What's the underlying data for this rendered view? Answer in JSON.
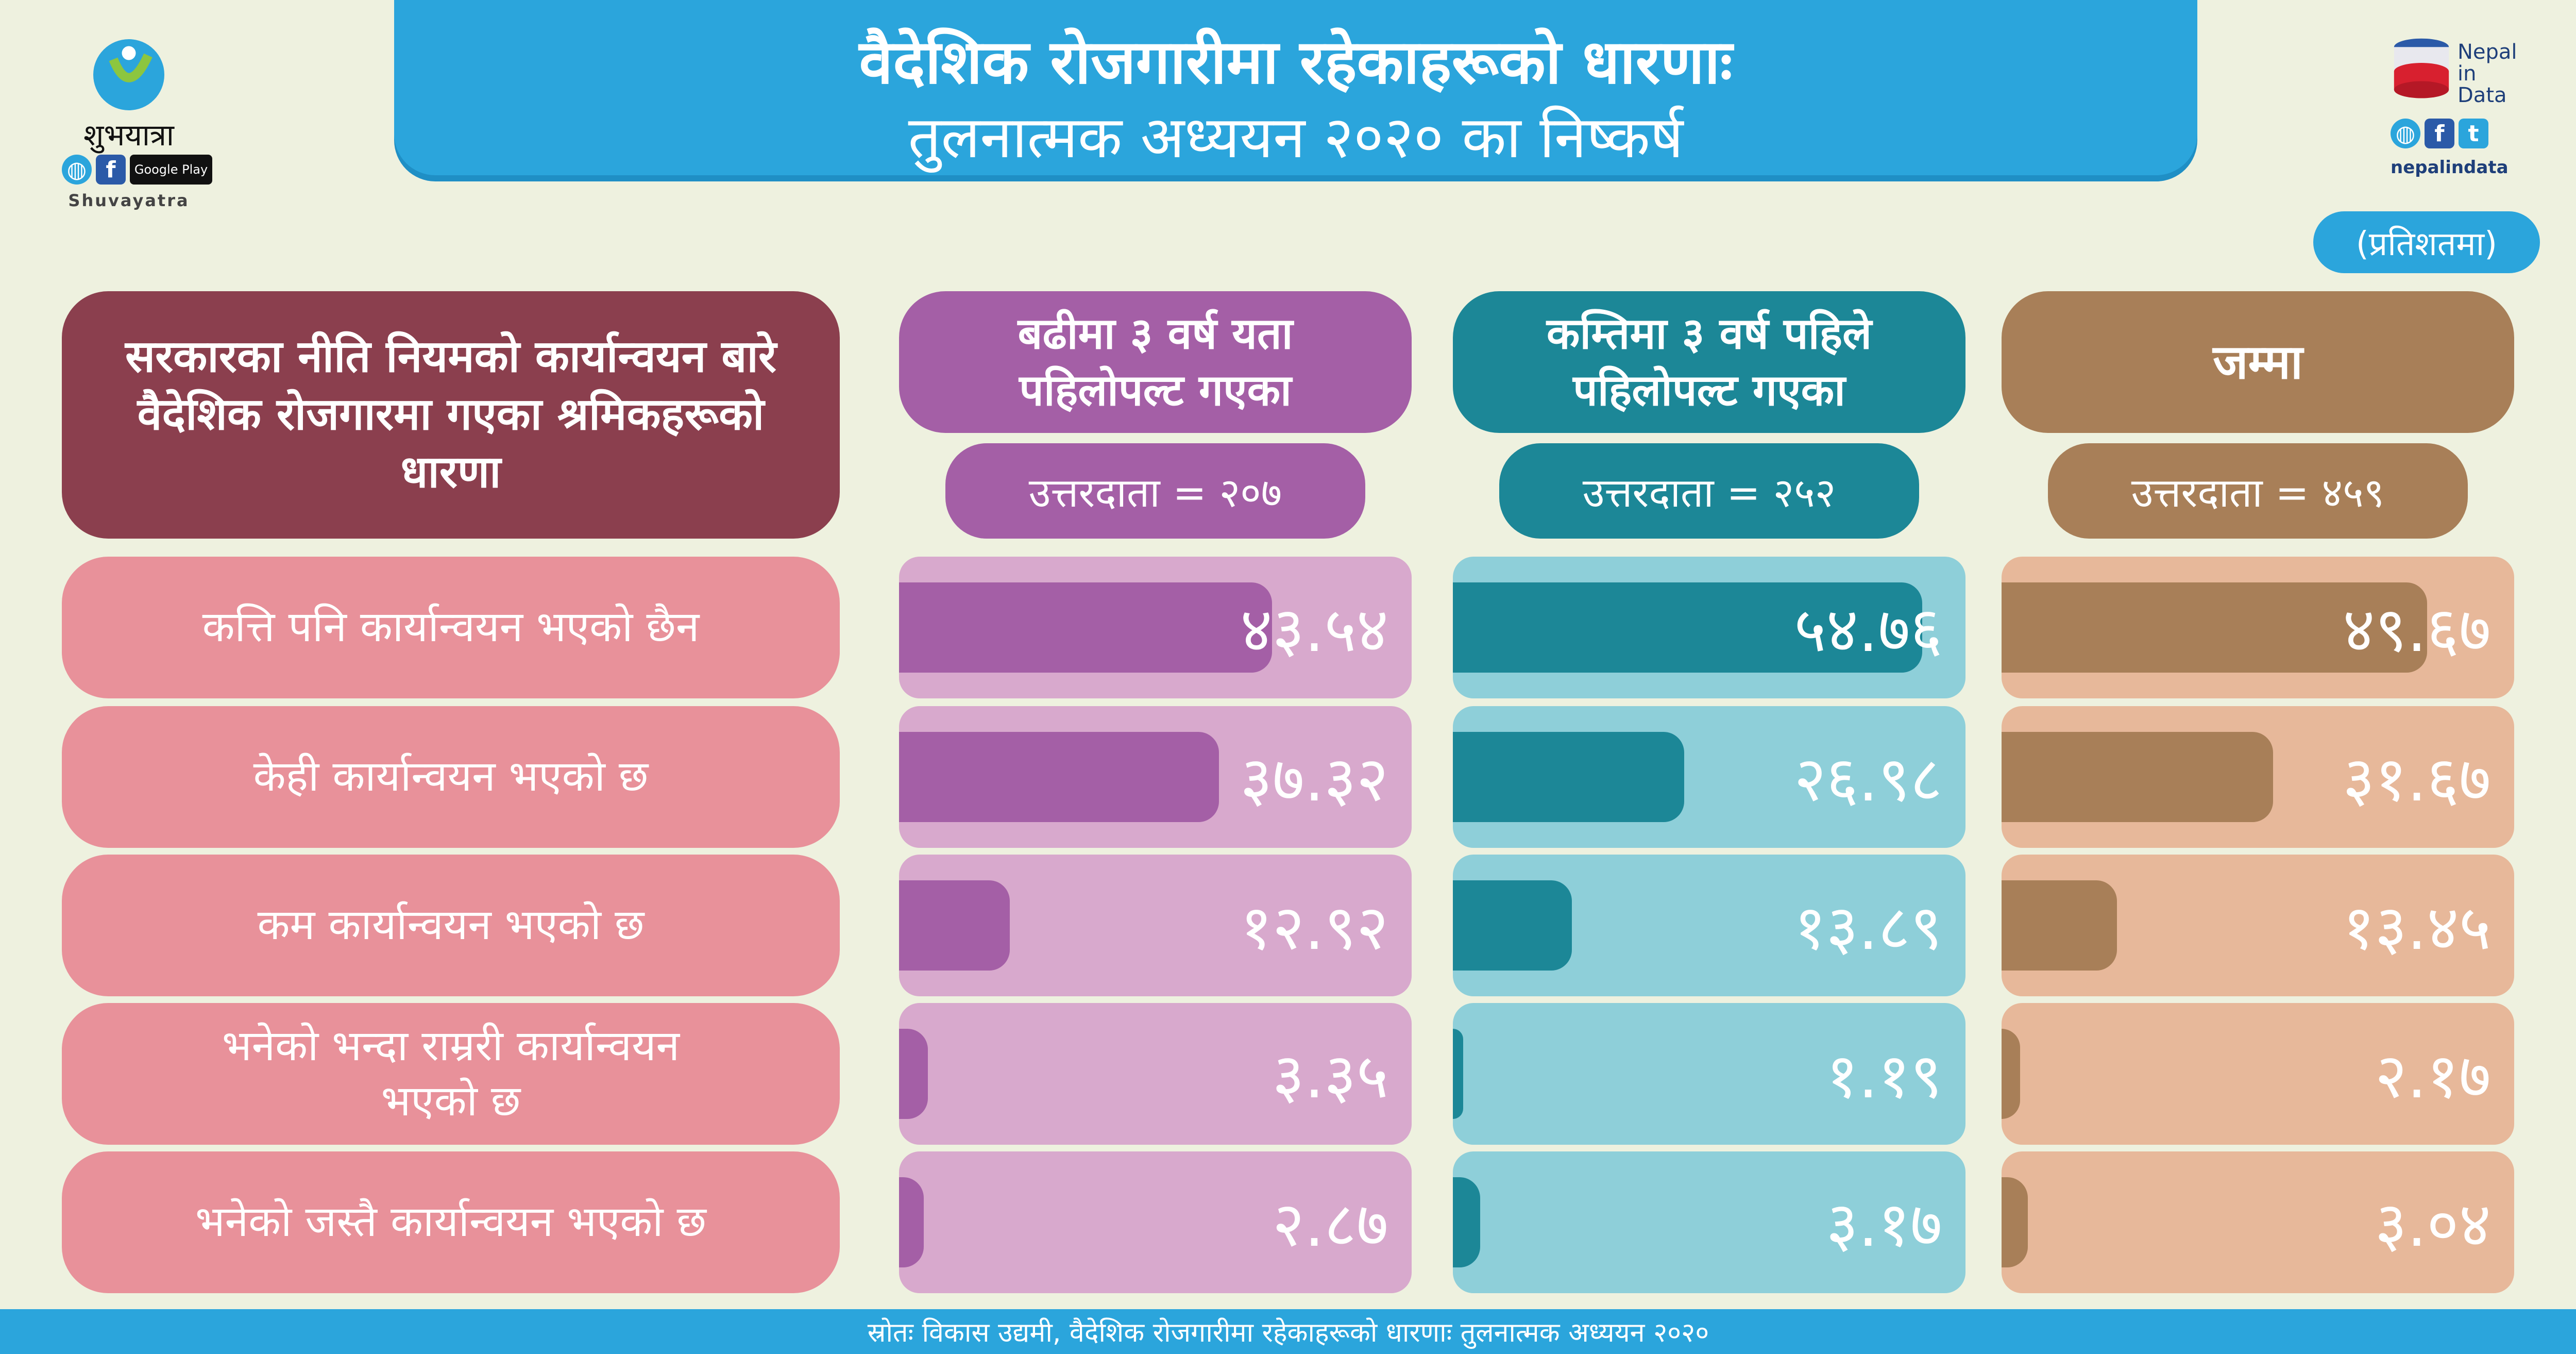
{
  "header": {
    "title_line1": "वैदेशिक रोजगारीमा रहेकाहरूको धारणाः",
    "title_line2": "तुलनात्मक अध्ययन २०२० का निष्कर्ष"
  },
  "left_logo": {
    "name": "शुभयात्रा",
    "latin": "Shuvayatra",
    "store_badge": "Google Play",
    "icons": [
      "globe-icon",
      "facebook-icon",
      "google-play-icon"
    ]
  },
  "right_logo": {
    "line1": "Nepal",
    "line2": "in",
    "line3": "Data",
    "handle": "nepalindata",
    "icons": [
      "globe-icon",
      "facebook-icon",
      "twitter-icon"
    ]
  },
  "unit_label": "(प्रतिशतमा)",
  "question": "सरकारका नीति नियमको कार्यान्वयन बारे वैदेशिक रोजगारमा गएका श्रमिकहरूको धारणा",
  "columns": [
    {
      "title": "बढीमा ३ वर्ष यता पहिलोपल्ट गएका",
      "respondents": "उत्तरदाता = २०७",
      "color": "#a45fa6",
      "bg": "#d8a9cd"
    },
    {
      "title": "कम्तिमा ३ वर्ष पहिले पहिलोपल्ट गएका",
      "respondents": "उत्तरदाता = २५२",
      "color": "#1c8797",
      "bg": "#8ecfd9"
    },
    {
      "title": "जम्मा",
      "respondents": "उत्तरदाता = ४५९",
      "color": "#a87f58",
      "bg": "#e7b89a"
    }
  ],
  "rows": [
    "कत्ति पनि कार्यान्वयन भएको छैन",
    "केही कार्यान्वयन भएको छ",
    "कम कार्यान्वयन भएको छ",
    "भनेको भन्दा राम्ररी कार्यान्वयन भएको छ",
    "भनेको जस्तै कार्यान्वयन भएको छ"
  ],
  "chart_data": {
    "type": "bar",
    "categories": [
      "कत्ति पनि कार्यान्वयन भएको छैन",
      "केही कार्यान्वयन भएको छ",
      "कम कार्यान्वयन भएको छ",
      "भनेको भन्दा राम्ररी कार्यान्वयन भएको छ",
      "भनेको जस्तै कार्यान्वयन भएको छ"
    ],
    "series": [
      {
        "name": "बढीमा ३ वर्ष यता पहिलोपल्ट गएका",
        "values": [
          43.54,
          37.32,
          12.92,
          3.35,
          2.87
        ],
        "labels": [
          "४३.५४",
          "३७.३२",
          "१२.९२",
          "३.३५",
          "२.८७"
        ]
      },
      {
        "name": "कम्तिमा ३ वर्ष पहिले पहिलोपल्ट गएका",
        "values": [
          54.76,
          26.98,
          13.89,
          1.19,
          3.17
        ],
        "labels": [
          "५४.७६",
          "२६.९८",
          "१३.८९",
          "१.१९",
          "३.१७"
        ]
      },
      {
        "name": "जम्मा",
        "values": [
          49.67,
          31.67,
          13.45,
          2.17,
          3.04
        ],
        "labels": [
          "४९.६७",
          "३१.६७",
          "१३.४५",
          "२.१७",
          "३.०४"
        ]
      }
    ],
    "ylim": [
      0,
      100
    ]
  },
  "footer": "स्रोतः विकास उद्यमी, वैदेशिक रोजगारीमा रहेकाहरूको धारणाः तुलनात्मक अध्ययन २०२०"
}
